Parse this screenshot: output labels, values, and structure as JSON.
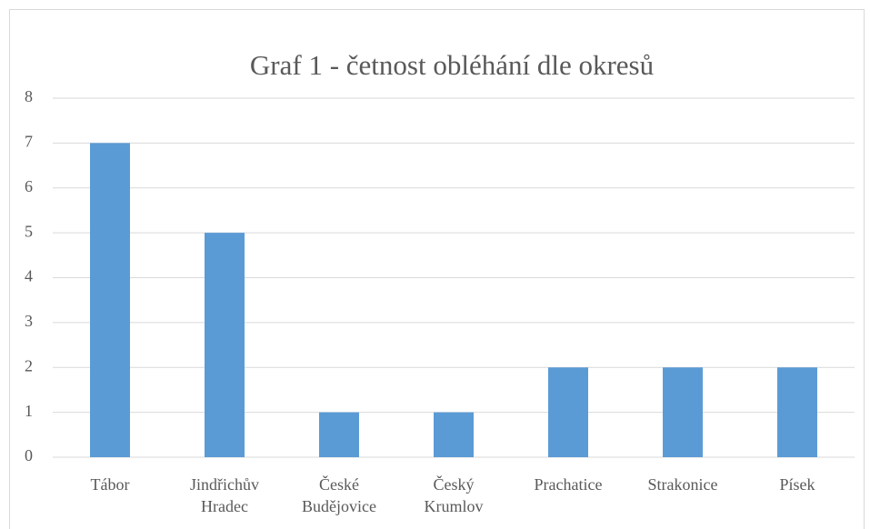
{
  "chart_data": {
    "type": "bar",
    "title": "Graf 1 - četnost obléhání dle okresů",
    "categories": [
      "Tábor",
      "Jindřichův Hradec",
      "České Budějovice",
      "Český Krumlov",
      "Prachatice",
      "Strakonice",
      "Písek"
    ],
    "values": [
      7,
      5,
      1,
      1,
      2,
      2,
      2
    ],
    "color": "#5b9bd5",
    "ylim": [
      0,
      8
    ],
    "yticks": [
      0,
      1,
      2,
      3,
      4,
      5,
      6,
      7,
      8
    ],
    "grid": true
  }
}
